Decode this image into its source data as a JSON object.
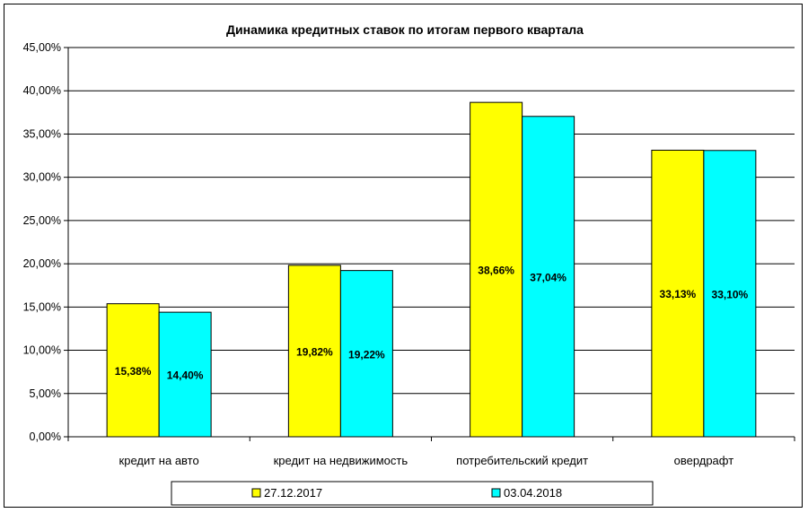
{
  "chart_data": {
    "type": "bar",
    "title": "Динамика кредитных ставок по итогам первого квартала",
    "xlabel": "",
    "ylabel": "",
    "categories": [
      "кредит на авто",
      "кредит на недвижимость",
      "потребительский кредит",
      "овердрафт"
    ],
    "series": [
      {
        "name": "27.12.2017",
        "color": "#ffff00",
        "values": [
          15.38,
          19.82,
          38.66,
          33.13
        ],
        "labels": [
          "15,38%",
          "19,82%",
          "38,66%",
          "33,13%"
        ]
      },
      {
        "name": "03.04.2018",
        "color": "#00ffff",
        "values": [
          14.4,
          19.22,
          37.04,
          33.1
        ],
        "labels": [
          "14,40%",
          "19,22%",
          "37,04%",
          "33,10%"
        ]
      }
    ],
    "ylim": [
      0,
      45
    ],
    "yticks": [
      0,
      5,
      10,
      15,
      20,
      25,
      30,
      35,
      40,
      45
    ],
    "ytick_labels": [
      "0,00%",
      "5,00%",
      "10,00%",
      "15,00%",
      "20,00%",
      "25,00%",
      "30,00%",
      "35,00%",
      "40,00%",
      "45,00%"
    ],
    "grid": true,
    "legend_position": "bottom"
  }
}
